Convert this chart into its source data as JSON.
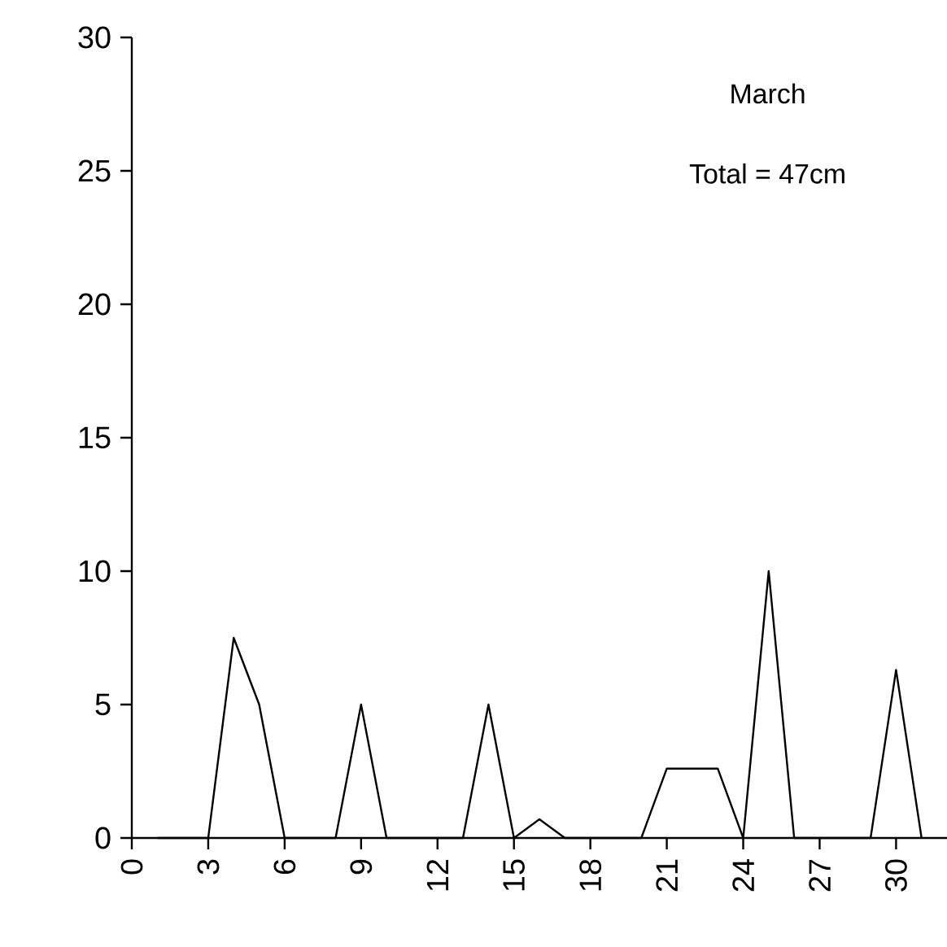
{
  "chart_data": {
    "type": "line",
    "x": [
      1,
      2,
      3,
      4,
      5,
      6,
      7,
      8,
      9,
      10,
      11,
      12,
      13,
      14,
      15,
      16,
      17,
      18,
      19,
      20,
      21,
      22,
      23,
      24,
      25,
      26,
      27,
      28,
      29,
      30,
      31
    ],
    "values": [
      0,
      0,
      0,
      7.5,
      5,
      0,
      0,
      0,
      5,
      0,
      0,
      0,
      0,
      5,
      0,
      0.7,
      0,
      0,
      0,
      0,
      2.6,
      2.6,
      2.6,
      0,
      10,
      0,
      0,
      0,
      0,
      6.3,
      0
    ],
    "color": "#000000",
    "xlim": [
      0,
      32
    ],
    "ylim": [
      0,
      30
    ],
    "xticks": [
      0,
      3,
      6,
      9,
      12,
      15,
      18,
      21,
      24,
      27,
      30
    ],
    "yticks": [
      0,
      5,
      10,
      15,
      20,
      25,
      30
    ],
    "annotations": [
      "March",
      "Total = 47cm"
    ],
    "grid": false,
    "marker": "none",
    "line_style": "solid"
  }
}
